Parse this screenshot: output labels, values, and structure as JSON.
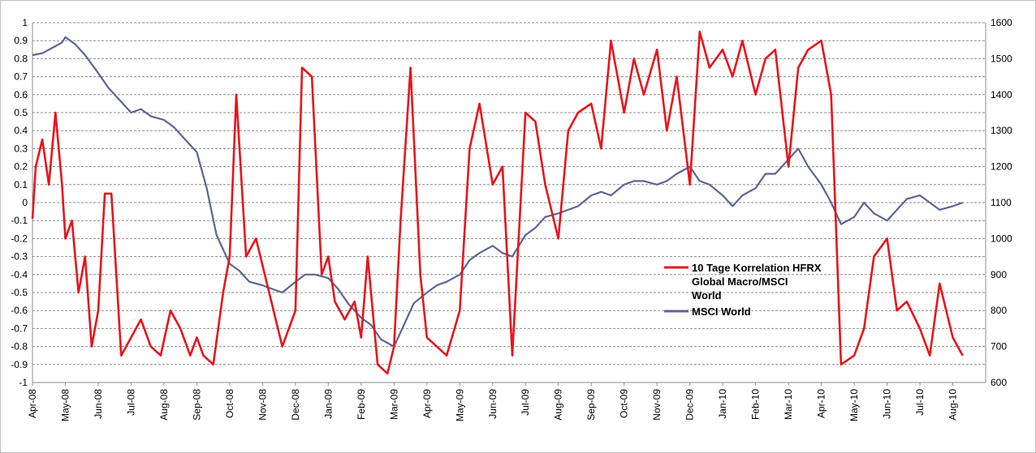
{
  "chart_data": {
    "type": "line",
    "title": "",
    "xlabel": "",
    "ylabel": "",
    "ylim_left": [
      -1,
      1
    ],
    "ylim_right": [
      600,
      1600
    ],
    "y_left_ticks": [
      "1",
      "0.9",
      "0.8",
      "0.7",
      "0.6",
      "0.5",
      "0.4",
      "0.3",
      "0.2",
      "0.1",
      "0",
      "-0.1",
      "-0.2",
      "-0.3",
      "-0.4",
      "-0.5",
      "-0.6",
      "-0.7",
      "-0.8",
      "-0.9",
      "-1"
    ],
    "y_right_ticks": [
      "1600",
      "1500",
      "1400",
      "1300",
      "1200",
      "1100",
      "1000",
      "900",
      "800",
      "700",
      "600"
    ],
    "x_ticks": [
      "Apr-08",
      "May-08",
      "Jun-08",
      "Jul-08",
      "Aug-08",
      "Sep-08",
      "Oct-08",
      "Nov-08",
      "Dec-08",
      "Jan-09",
      "Feb-09",
      "Mar-09",
      "Apr-09",
      "May-09",
      "Jun-09",
      "Jul-09",
      "Aug-09",
      "Sep-09",
      "Oct-09",
      "Nov-09",
      "Dec-09",
      "Jan-10",
      "Feb-10",
      "Mar-10",
      "Apr-10",
      "May-10",
      "Jun-10",
      "Jul-10",
      "Aug-10"
    ],
    "grid": true,
    "legend_position": "center-right",
    "series": [
      {
        "name": "10 Tage Korrelation HFRX Global Macro/MSCI World",
        "axis": "left",
        "color": "#e8141c",
        "x": [
          0,
          0.1,
          0.3,
          0.5,
          0.7,
          0.9,
          1.0,
          1.2,
          1.4,
          1.6,
          1.8,
          2.0,
          2.2,
          2.4,
          2.7,
          3.0,
          3.3,
          3.6,
          3.9,
          4.2,
          4.5,
          4.8,
          5.0,
          5.2,
          5.5,
          5.8,
          6.0,
          6.2,
          6.5,
          6.8,
          7.0,
          7.2,
          7.4,
          7.6,
          7.8,
          8.0,
          8.2,
          8.5,
          8.8,
          9.0,
          9.2,
          9.5,
          9.8,
          10.0,
          10.2,
          10.5,
          10.8,
          11.0,
          11.2,
          11.5,
          11.8,
          12.0,
          12.3,
          12.6,
          13.0,
          13.3,
          13.6,
          14.0,
          14.3,
          14.6,
          15.0,
          15.3,
          15.6,
          16.0,
          16.3,
          16.6,
          17.0,
          17.3,
          17.6,
          18.0,
          18.3,
          18.6,
          19.0,
          19.3,
          19.6,
          20.0,
          20.3,
          20.6,
          21.0,
          21.3,
          21.6,
          22.0,
          22.3,
          22.6,
          23.0,
          23.3,
          23.6,
          24.0,
          24.3,
          24.6,
          25.0,
          25.3,
          25.6,
          26.0,
          26.3,
          26.6,
          27.0,
          27.3,
          27.6,
          28.0,
          28.3
        ],
        "y": [
          -0.09,
          0.2,
          0.35,
          0.1,
          0.5,
          0.1,
          -0.2,
          -0.1,
          -0.5,
          -0.3,
          -0.8,
          -0.6,
          0.05,
          0.05,
          -0.85,
          -0.75,
          -0.65,
          -0.8,
          -0.85,
          -0.6,
          -0.7,
          -0.85,
          -0.75,
          -0.85,
          -0.9,
          -0.5,
          -0.3,
          0.6,
          -0.3,
          -0.2,
          -0.35,
          -0.5,
          -0.65,
          -0.8,
          -0.7,
          -0.6,
          0.75,
          0.7,
          -0.4,
          -0.3,
          -0.55,
          -0.65,
          -0.55,
          -0.75,
          -0.3,
          -0.9,
          -0.95,
          -0.8,
          -0.1,
          0.75,
          -0.4,
          -0.75,
          -0.8,
          -0.85,
          -0.6,
          0.3,
          0.55,
          0.1,
          0.2,
          -0.85,
          0.5,
          0.45,
          0.1,
          -0.2,
          0.4,
          0.5,
          0.55,
          0.3,
          0.9,
          0.5,
          0.8,
          0.6,
          0.85,
          0.4,
          0.7,
          0.1,
          0.95,
          0.75,
          0.85,
          0.7,
          0.9,
          0.6,
          0.8,
          0.85,
          0.2,
          0.75,
          0.85,
          0.9,
          0.6,
          -0.9,
          -0.85,
          -0.7,
          -0.3,
          -0.2,
          -0.6,
          -0.55,
          -0.7,
          -0.85,
          -0.45,
          -0.75,
          -0.85
        ]
      },
      {
        "name": "MSCI World",
        "axis": "right",
        "color": "#5f6492",
        "x": [
          0,
          0.3,
          0.6,
          0.9,
          1.0,
          1.3,
          1.6,
          2.0,
          2.3,
          2.6,
          3.0,
          3.3,
          3.6,
          4.0,
          4.3,
          4.6,
          5.0,
          5.3,
          5.6,
          6.0,
          6.3,
          6.6,
          7.0,
          7.3,
          7.6,
          8.0,
          8.3,
          8.6,
          9.0,
          9.3,
          9.6,
          10.0,
          10.3,
          10.6,
          11.0,
          11.3,
          11.6,
          12.0,
          12.3,
          12.6,
          13.0,
          13.3,
          13.6,
          14.0,
          14.3,
          14.6,
          15.0,
          15.3,
          15.6,
          16.0,
          16.3,
          16.6,
          17.0,
          17.3,
          17.6,
          18.0,
          18.3,
          18.6,
          19.0,
          19.3,
          19.6,
          20.0,
          20.3,
          20.6,
          21.0,
          21.3,
          21.6,
          22.0,
          22.3,
          22.6,
          23.0,
          23.3,
          23.6,
          24.0,
          24.3,
          24.6,
          25.0,
          25.3,
          25.6,
          26.0,
          26.3,
          26.6,
          27.0,
          27.3,
          27.6,
          28.0,
          28.3
        ],
        "y": [
          1510,
          1515,
          1530,
          1545,
          1560,
          1540,
          1510,
          1460,
          1420,
          1390,
          1350,
          1360,
          1340,
          1330,
          1310,
          1280,
          1240,
          1140,
          1010,
          930,
          910,
          880,
          870,
          860,
          850,
          880,
          900,
          900,
          890,
          860,
          820,
          780,
          760,
          720,
          700,
          760,
          820,
          850,
          870,
          880,
          900,
          940,
          960,
          980,
          960,
          950,
          1010,
          1030,
          1060,
          1070,
          1080,
          1090,
          1120,
          1130,
          1120,
          1150,
          1160,
          1160,
          1150,
          1160,
          1180,
          1200,
          1160,
          1150,
          1120,
          1090,
          1120,
          1140,
          1180,
          1180,
          1220,
          1250,
          1200,
          1150,
          1100,
          1040,
          1060,
          1100,
          1070,
          1050,
          1080,
          1110,
          1120,
          1100,
          1080,
          1090,
          1100
        ]
      }
    ]
  }
}
